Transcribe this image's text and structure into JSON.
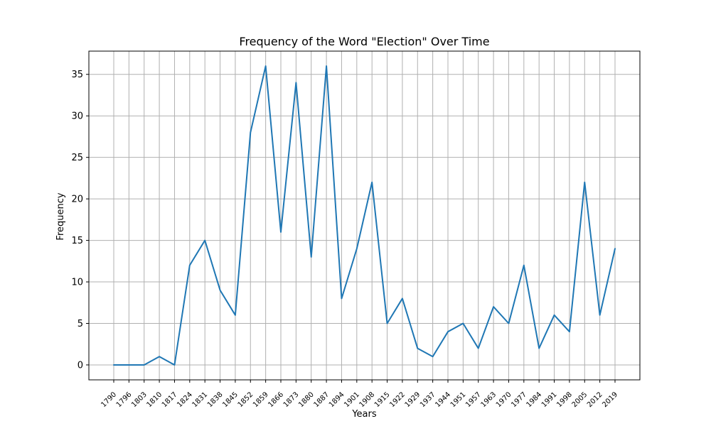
{
  "chart_data": {
    "type": "line",
    "title": "Frequency of the Word \"Election\" Over Time",
    "xlabel": "Years",
    "ylabel": "Frequency",
    "ylim": [
      -1.8,
      37.8
    ],
    "yticks": [
      0,
      5,
      10,
      15,
      20,
      25,
      30,
      35
    ],
    "grid": true,
    "line_color": "#1f77b4",
    "grid_color": "#b0b0b0",
    "categories": [
      "1790",
      "1796",
      "1803",
      "1810",
      "1817",
      "1824",
      "1831",
      "1838",
      "1845",
      "1852",
      "1859",
      "1866",
      "1873",
      "1880",
      "1887",
      "1894",
      "1901",
      "1908",
      "1915",
      "1922",
      "1929",
      "1937",
      "1944",
      "1951",
      "1957",
      "1963",
      "1970",
      "1977",
      "1984",
      "1991",
      "1998",
      "2005",
      "2012",
      "2019"
    ],
    "series": [
      {
        "values": [
          0,
          0,
          0,
          1,
          0,
          12,
          15,
          9,
          6,
          28,
          36,
          16,
          34,
          13,
          36,
          8,
          14,
          22,
          5,
          8,
          2,
          1,
          4,
          5,
          2,
          7,
          5,
          12,
          2,
          6,
          4,
          22,
          6,
          14
        ]
      }
    ]
  }
}
